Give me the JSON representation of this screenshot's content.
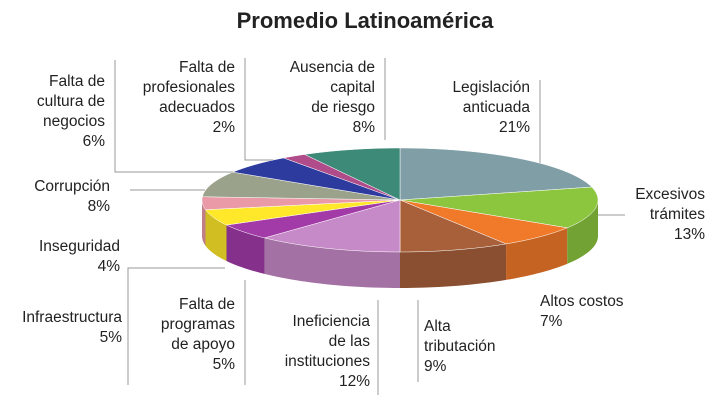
{
  "chart_data": {
    "type": "pie",
    "title": "Promedio Latinoamérica",
    "categories": [
      "Legislación\nanticuada",
      "Excesivos\ntrámites",
      "Altos costos",
      "Alta\ntributación",
      "Ineficiencia\nde las\ninstituciones",
      "Falta de\nprogramas\nde apoyo",
      "Infraestructura",
      "Inseguridad",
      "Corrupción",
      "Falta de\ncultura de\nnegocios",
      "Falta de\nprofesionales\nadecuados",
      "Ausencia de\ncapital\nde riesgo"
    ],
    "values": [
      21,
      13,
      7,
      9,
      12,
      5,
      5,
      4,
      8,
      6,
      2,
      8
    ],
    "value_labels": [
      "21%",
      "13%",
      "7%",
      "9%",
      "12%",
      "5%",
      "5%",
      "4%",
      "8%",
      "6%",
      "2%",
      "8%"
    ],
    "colors": [
      "#7f9ea6",
      "#8cc63f",
      "#f07a2a",
      "#a8603a",
      "#c78ac8",
      "#a23aa8",
      "#ffe82a",
      "#e99aa6",
      "#9aa28c",
      "#2d3a9e",
      "#b04c8a",
      "#3e8a78"
    ]
  }
}
